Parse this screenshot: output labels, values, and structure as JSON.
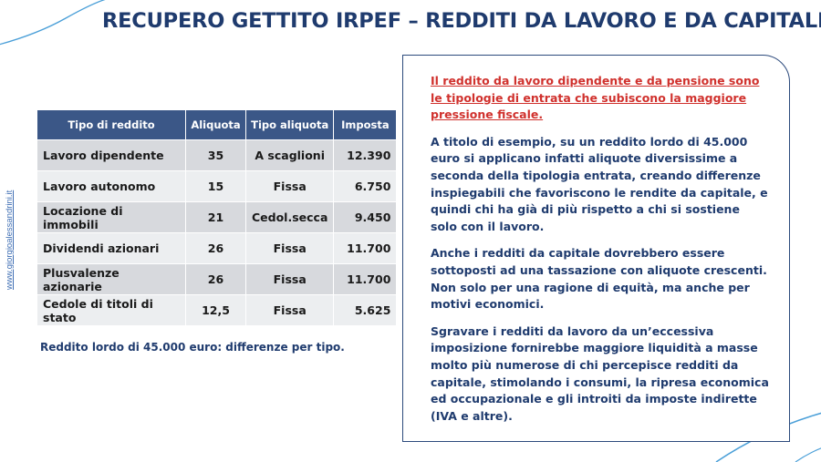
{
  "header": {
    "title": "RECUPERO GETTITO IRPEF – REDDITI DA LAVORO E DA CAPITALE"
  },
  "side_link": "www.giorgioalessandrini.it",
  "table": {
    "headers": [
      "Tipo di reddito",
      "Aliquota",
      "Tipo aliquota",
      "Imposta"
    ],
    "rows": [
      [
        "Lavoro dipendente",
        "35",
        "A scaglioni",
        "12.390"
      ],
      [
        "Lavoro autonomo",
        "15",
        "Fissa",
        "6.750"
      ],
      [
        "Locazione di immobili",
        "21",
        "Cedol.secca",
        "9.450"
      ],
      [
        "Dividendi azionari",
        "26",
        "Fissa",
        "11.700"
      ],
      [
        "Plusvalenze azionarie",
        "26",
        "Fissa",
        "11.700"
      ],
      [
        "Cedole di titoli di stato",
        "12,5",
        "Fissa",
        "5.625"
      ]
    ],
    "caption": "Reddito lordo di 45.000 euro: differenze per tipo."
  },
  "card": {
    "highlight": "Il reddito da lavoro dipendente e da pensione sono le tipologie di entrata che subiscono la maggiore pressione fiscale.",
    "paragraphs": [
      "A titolo di esempio, su un reddito lordo di 45.000 euro si applicano infatti aliquote diversissime a seconda della tipologia entrata, creando differenze inspiegabili che favoriscono le rendite da capitale, e quindi chi ha già di più rispetto a chi si sostiene solo con il lavoro.",
      "Anche i redditi da capitale dovrebbero essere sottoposti ad una tassazione con aliquote crescenti. Non solo per una ragione di equità, ma anche per motivi economici.",
      "Sgravare i redditi da lavoro da un’eccessiva imposizione fornirebbe maggiore liquidità a masse molto più numerose di chi percepisce redditi da capitale, stimolando i consumi, la ripresa economica ed occupazionale e gli introiti da imposte indirette (IVA e altre)."
    ]
  },
  "colors": {
    "title": "#1f3b6e",
    "table_header": "#3b5787",
    "row_odd": "#d7d9dd",
    "row_even": "#eceef0",
    "highlight": "#d0312d",
    "accent_curve": "#4a9fd8"
  }
}
